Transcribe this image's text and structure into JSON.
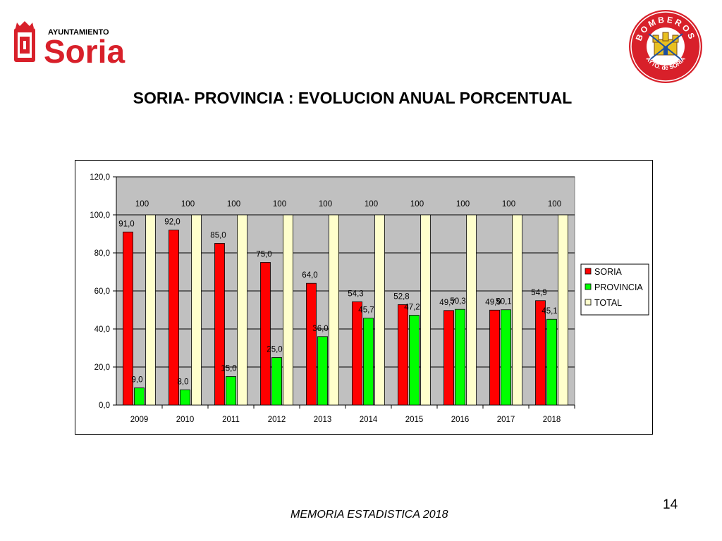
{
  "header": {
    "logo_left": {
      "top_text": "AYUNTAMIENTO",
      "main_text": "Soria",
      "color": "#d8202a"
    },
    "logo_right": {
      "top_text": "BOMBEROS",
      "bottom_text": "AYTO. de SORIA",
      "color": "#d8202a"
    }
  },
  "slide": {
    "title": "SORIA- PROVINCIA : EVOLUCION ANUAL PORCENTUAL",
    "footer": "MEMORIA ESTADISTICA 2018",
    "page_number": "14"
  },
  "chart_data": {
    "type": "bar",
    "categories": [
      "2009",
      "2010",
      "2011",
      "2012",
      "2013",
      "2014",
      "2015",
      "2016",
      "2017",
      "2018"
    ],
    "series": [
      {
        "name": "SORIA",
        "color": "#ff0000",
        "values": [
          91.0,
          92.0,
          85.0,
          75.0,
          64.0,
          54.3,
          52.8,
          49.7,
          49.9,
          54.9
        ],
        "labels": [
          "91,0",
          "92,0",
          "85,0",
          "75,0",
          "64,0",
          "54,3",
          "52,8",
          "49,7",
          "49,9",
          "54,9"
        ]
      },
      {
        "name": "PROVINCIA",
        "color": "#00ff00",
        "values": [
          9.0,
          8.0,
          15.0,
          25.0,
          36.0,
          45.7,
          47.2,
          50.3,
          50.1,
          45.1
        ],
        "labels": [
          "9,0",
          "8,0",
          "15,0",
          "25,0",
          "36,0",
          "45,7",
          "47,2",
          "50,3",
          "50,1",
          "45,1"
        ]
      },
      {
        "name": "TOTAL",
        "color": "#ffffcc",
        "values": [
          100,
          100,
          100,
          100,
          100,
          100,
          100,
          100,
          100,
          100
        ],
        "labels": [
          "100",
          "100",
          "100",
          "100",
          "100",
          "100",
          "100",
          "100",
          "100",
          "100"
        ]
      }
    ],
    "ylim": [
      0,
      120
    ],
    "yticks": [
      "0,0",
      "20,0",
      "40,0",
      "60,0",
      "80,0",
      "100,0",
      "120,0"
    ],
    "plot_background": "#c0c0c0",
    "grid": true,
    "legend": "right"
  }
}
